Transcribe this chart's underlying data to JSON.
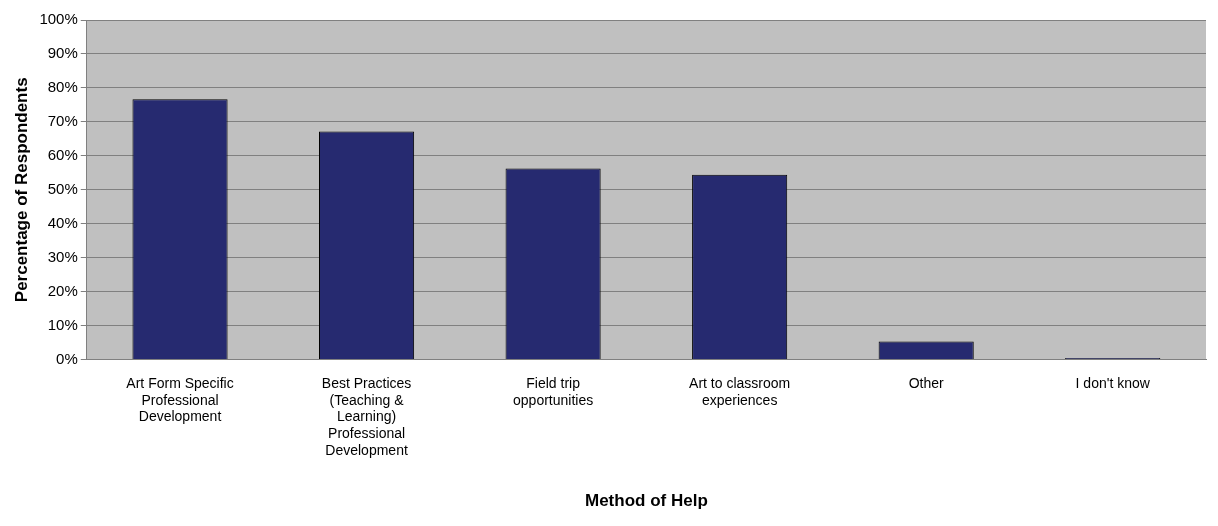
{
  "chart_data": {
    "type": "bar",
    "xlabel": "Method of Help",
    "ylabel": "Percentage of Respondents",
    "categories": [
      "Art Form Specific Professional Development",
      "Best Practices (Teaching & Learning) Professional Development",
      "Field trip opportunities",
      "Art to classroom experiences",
      "Other",
      "I don't know"
    ],
    "values": [
      76.7,
      67.2,
      56.3,
      54.4,
      5.3,
      0.5
    ],
    "color": "#262a70",
    "ylim": [
      0,
      100
    ],
    "yticks": [
      {
        "value": 0,
        "label": "0%"
      },
      {
        "value": 10,
        "label": "10%"
      },
      {
        "value": 20,
        "label": "20%"
      },
      {
        "value": 30,
        "label": "30%"
      },
      {
        "value": 40,
        "label": "40%"
      },
      {
        "value": 50,
        "label": "50%"
      },
      {
        "value": 60,
        "label": "60%"
      },
      {
        "value": 70,
        "label": "70%"
      },
      {
        "value": 80,
        "label": "80%"
      },
      {
        "value": 90,
        "label": "90%"
      },
      {
        "value": 100,
        "label": "100%"
      }
    ],
    "grid": "y",
    "legend": false
  }
}
